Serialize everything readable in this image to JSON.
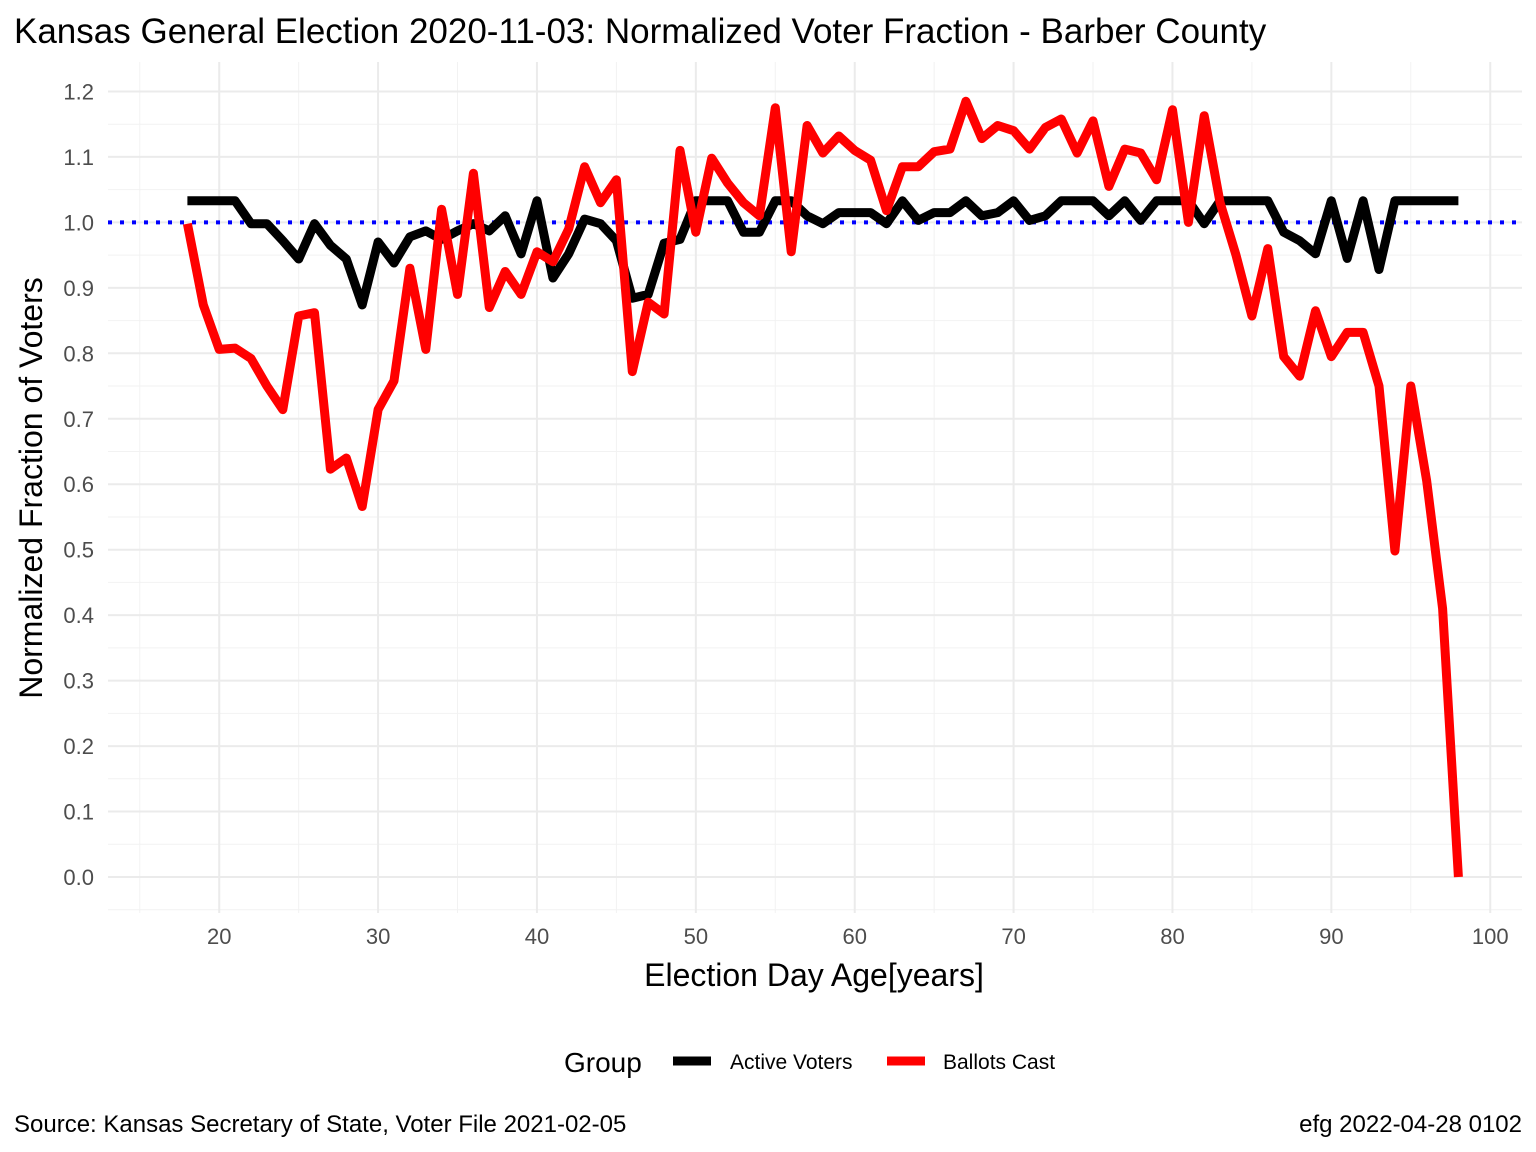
{
  "chart_data": {
    "type": "line",
    "title": "Kansas General Election 2020-11-03:  Normalized Voter Fraction - Barber County",
    "xlabel": "Election Day Age[years]",
    "ylabel": "Normalized Fraction of Voters",
    "xlim": [
      13,
      102
    ],
    "ylim": [
      -0.055,
      1.245
    ],
    "x_ticks": [
      20,
      30,
      40,
      50,
      60,
      70,
      80,
      90,
      100
    ],
    "x_tick_labels": [
      "20",
      "30",
      "40",
      "50",
      "60",
      "70",
      "80",
      "90",
      "100"
    ],
    "y_ticks": [
      0.0,
      0.1,
      0.2,
      0.3,
      0.4,
      0.5,
      0.6,
      0.7,
      0.8,
      0.9,
      1.0,
      1.1,
      1.2
    ],
    "y_tick_labels": [
      "0.0",
      "0.1",
      "0.2",
      "0.3",
      "0.4",
      "0.5",
      "0.6",
      "0.7",
      "0.8",
      "0.9",
      "1.0",
      "1.1",
      "1.2"
    ],
    "grid": true,
    "reference_line": {
      "y": 1.0,
      "style": "dotted",
      "color": "#0000ff"
    },
    "legend": {
      "title": "Group",
      "position": "bottom",
      "entries": [
        {
          "label": "Active Voters",
          "color": "#000000"
        },
        {
          "label": "Ballots Cast",
          "color": "#ff0000"
        }
      ]
    },
    "x": [
      18,
      19,
      20,
      21,
      22,
      23,
      24,
      25,
      26,
      27,
      28,
      29,
      30,
      31,
      32,
      33,
      34,
      35,
      36,
      37,
      38,
      39,
      40,
      41,
      42,
      43,
      44,
      45,
      46,
      47,
      48,
      49,
      50,
      51,
      52,
      53,
      54,
      55,
      56,
      57,
      58,
      59,
      60,
      61,
      62,
      63,
      64,
      65,
      66,
      67,
      68,
      69,
      70,
      71,
      72,
      73,
      74,
      75,
      76,
      77,
      78,
      79,
      80,
      81,
      82,
      83,
      84,
      85,
      86,
      87,
      88,
      89,
      90,
      91,
      92,
      93,
      94,
      95,
      96,
      97,
      98
    ],
    "series": [
      {
        "name": "Active Voters",
        "color": "#000000",
        "values": [
          1.033,
          1.033,
          1.033,
          1.033,
          0.998,
          0.998,
          0.972,
          0.944,
          0.998,
          0.965,
          0.944,
          0.874,
          0.97,
          0.938,
          0.978,
          0.987,
          0.974,
          0.987,
          0.998,
          0.987,
          1.01,
          0.952,
          1.033,
          0.915,
          0.952,
          1.005,
          0.998,
          0.972,
          0.884,
          0.89,
          0.968,
          0.974,
          1.033,
          1.033,
          1.033,
          0.985,
          0.985,
          1.033,
          1.033,
          1.01,
          0.998,
          1.015,
          1.015,
          1.015,
          0.998,
          1.033,
          1.003,
          1.015,
          1.015,
          1.033,
          1.01,
          1.015,
          1.033,
          1.003,
          1.01,
          1.033,
          1.033,
          1.033,
          1.01,
          1.033,
          1.003,
          1.033,
          1.033,
          1.033,
          0.998,
          1.033,
          1.033,
          1.033,
          1.033,
          0.985,
          0.972,
          0.952,
          1.033,
          0.945,
          1.033,
          0.928,
          1.033,
          1.033,
          1.033,
          1.033,
          1.033
        ]
      },
      {
        "name": "Ballots Cast",
        "color": "#ff0000",
        "values": [
          0.998,
          0.874,
          0.806,
          0.808,
          0.792,
          0.75,
          0.714,
          0.857,
          0.862,
          0.623,
          0.64,
          0.566,
          0.714,
          0.758,
          0.93,
          0.806,
          1.02,
          0.89,
          1.075,
          0.87,
          0.925,
          0.89,
          0.955,
          0.94,
          0.99,
          1.085,
          1.03,
          1.065,
          0.772,
          0.878,
          0.86,
          1.11,
          0.985,
          1.098,
          1.06,
          1.03,
          1.01,
          1.175,
          0.955,
          1.148,
          1.106,
          1.132,
          1.11,
          1.095,
          1.018,
          1.085,
          1.085,
          1.108,
          1.112,
          1.185,
          1.128,
          1.148,
          1.14,
          1.112,
          1.145,
          1.158,
          1.106,
          1.155,
          1.055,
          1.112,
          1.106,
          1.065,
          1.172,
          1.0,
          1.163,
          1.03,
          0.95,
          0.857,
          0.96,
          0.795,
          0.765,
          0.865,
          0.795,
          0.832,
          0.832,
          0.75,
          0.498,
          0.75,
          0.605,
          0.41,
          0.0
        ]
      }
    ]
  },
  "caption": {
    "source": "Source:  Kansas Secretary of State, Voter File  2021-02-05",
    "credit": "efg 2022-04-28 0102"
  }
}
